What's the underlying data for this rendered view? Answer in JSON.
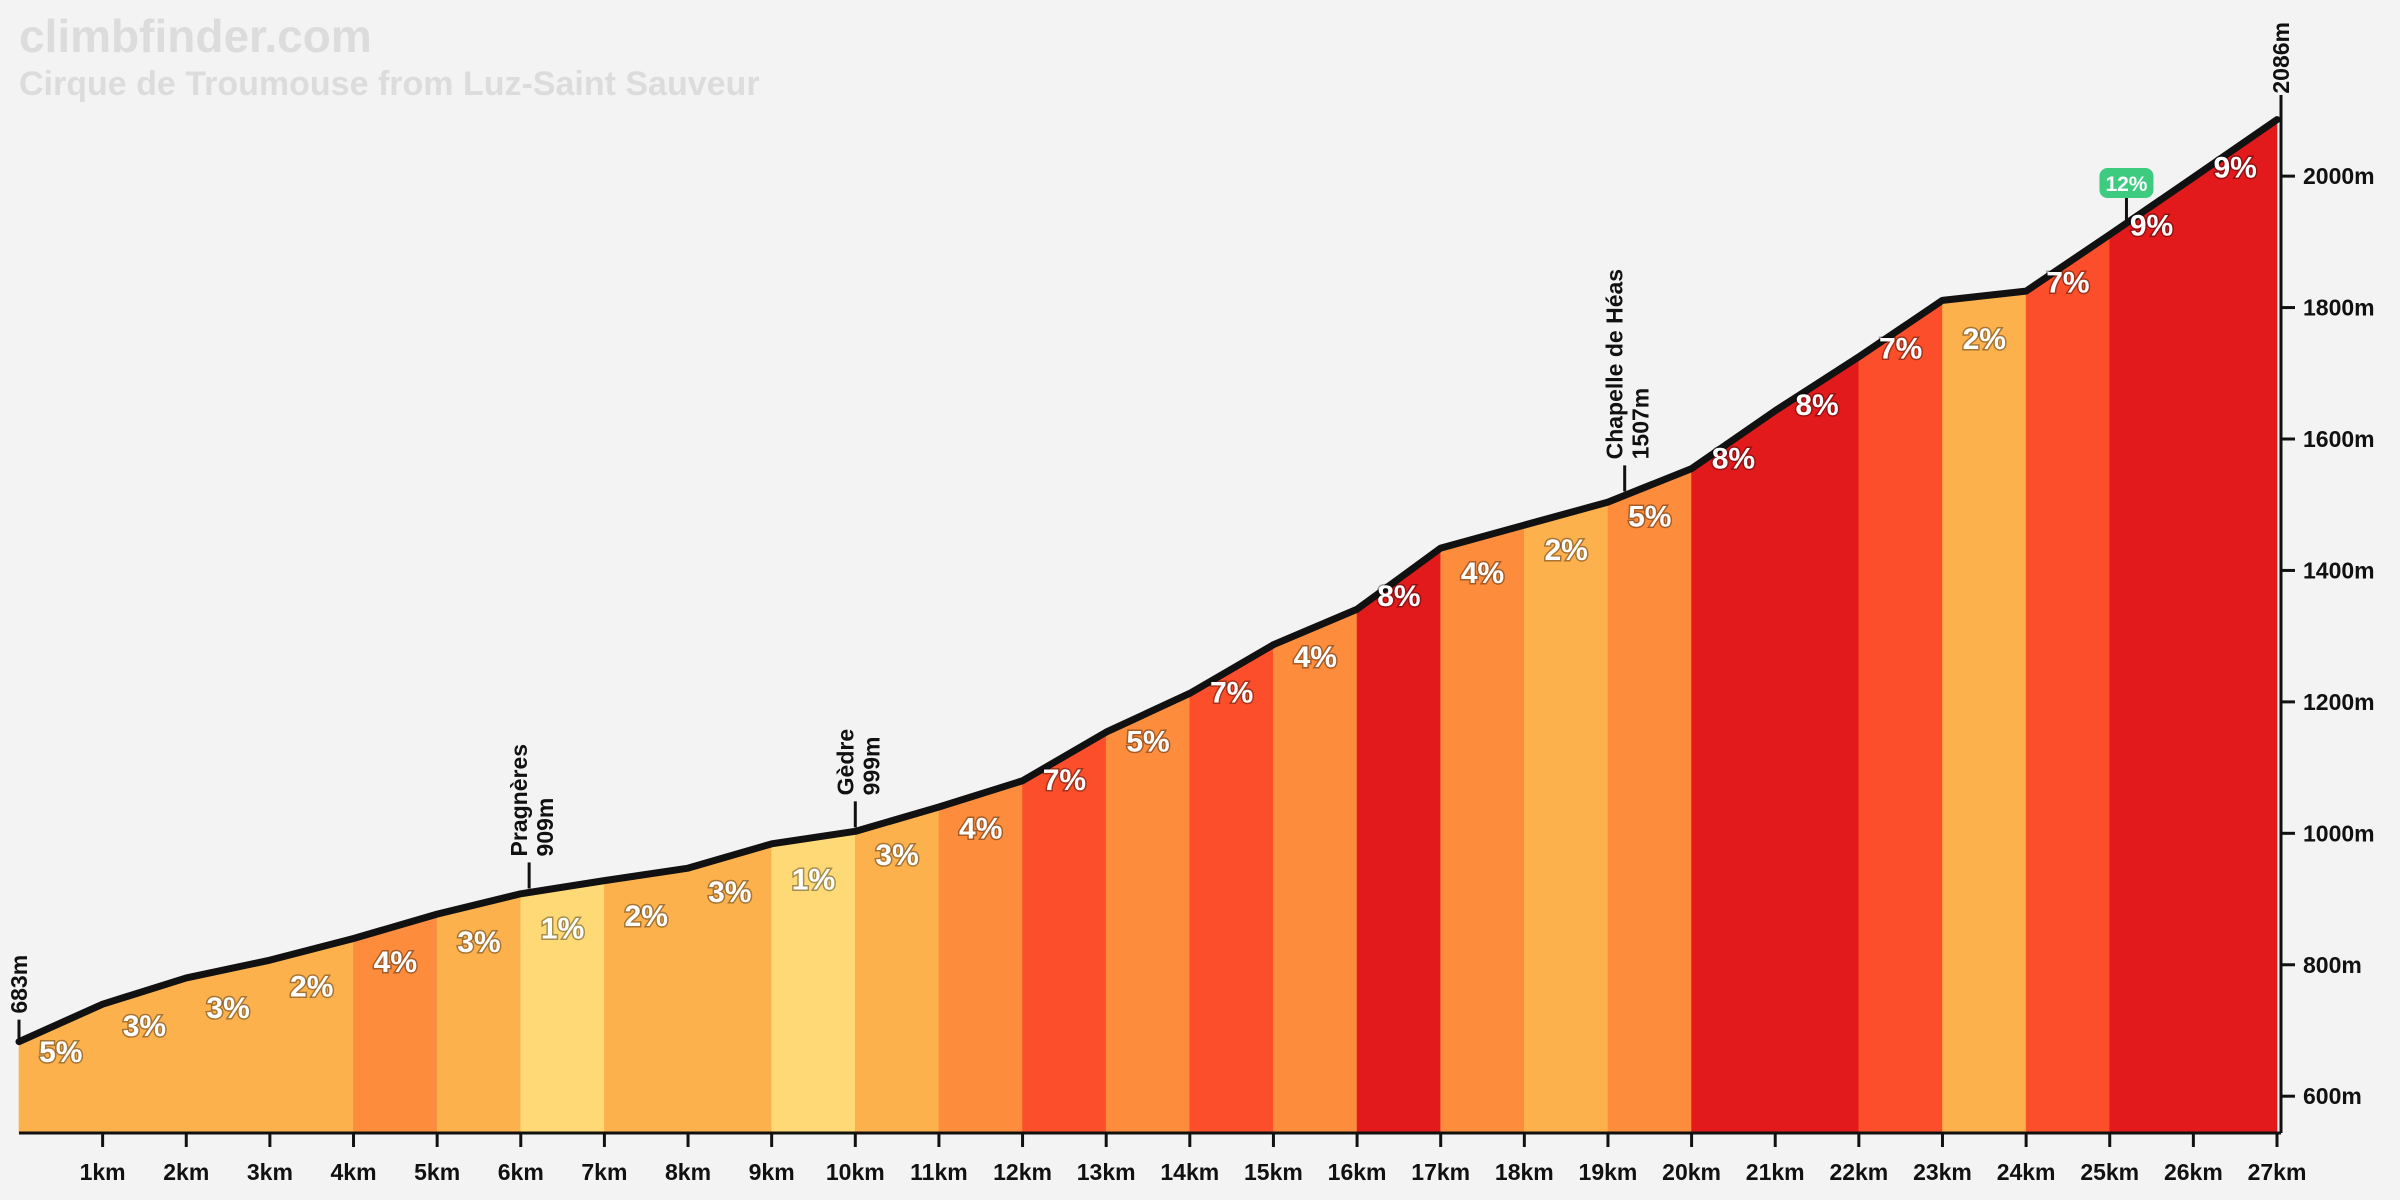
{
  "chart_data": {
    "type": "profile",
    "title": "climbfinder.com",
    "subtitle": "Cirque de Troumouse from Luz-Saint Sauveur",
    "x": [
      0,
      1,
      2,
      3,
      4,
      5,
      6,
      7,
      8,
      9,
      10,
      11,
      12,
      13,
      14,
      15,
      16,
      17,
      18,
      19,
      20,
      21,
      22,
      23,
      24,
      25,
      26,
      27
    ],
    "values": [
      683,
      740,
      780,
      807,
      840,
      877,
      908,
      928,
      947,
      984,
      1003,
      1040,
      1080,
      1154,
      1213,
      1287,
      1341,
      1434,
      1469,
      1504,
      1555,
      1643,
      1725,
      1811,
      1825,
      1911,
      1998,
      2086
    ],
    "gradients": [
      5,
      3,
      3,
      2,
      4,
      3,
      1,
      2,
      3,
      1,
      3,
      4,
      7,
      5,
      7,
      4,
      8,
      4,
      2,
      5,
      8,
      8,
      7,
      2,
      7,
      9,
      9
    ],
    "gradient_labels": [
      "5%",
      "3%",
      "3%",
      "2%",
      "4%",
      "3%",
      "1%",
      "2%",
      "3%",
      "1%",
      "3%",
      "4%",
      "7%",
      "5%",
      "7%",
      "4%",
      "8%",
      "4%",
      "2%",
      "5%",
      "8%",
      "8%",
      "7%",
      "2%",
      "7%",
      "9%",
      "9%"
    ],
    "segment_colors": [
      "#fdb14d",
      "#fdb14d",
      "#fdb14d",
      "#fdb14d",
      "#fd8d3c",
      "#fdb14d",
      "#fed976",
      "#fdb14d",
      "#fdb14d",
      "#fed976",
      "#fdb14d",
      "#fd8d3c",
      "#fc4e2a",
      "#fd8d3c",
      "#fc4e2a",
      "#fd8d3c",
      "#e31a1c",
      "#fd8d3c",
      "#fdb14d",
      "#fd8d3c",
      "#e31a1c",
      "#e31a1c",
      "#fc4e2a",
      "#fdb14d",
      "#fc4e2a",
      "#e31a1c",
      "#e31a1c"
    ],
    "line_color": "#111111",
    "start_label": "683m",
    "end_label": "2086m",
    "waypoints": [
      {
        "x": 6.1,
        "name": "Pragnères",
        "elevation": 909,
        "label": "909m"
      },
      {
        "x": 10,
        "name": "Gèdre",
        "elevation": 999,
        "label": "999m"
      },
      {
        "x": 19.2,
        "name": "Chapelle de Héas",
        "elevation": 1507,
        "label": "1507m"
      }
    ],
    "max_gradient": {
      "x": 25.2,
      "value": 12,
      "label": "12%",
      "color": "#3ccb7f"
    },
    "xlim": [
      0,
      27
    ],
    "ylim": [
      544,
      2268
    ],
    "xticks": [
      {
        "value": 1,
        "label": "1km"
      },
      {
        "value": 2,
        "label": "2km"
      },
      {
        "value": 3,
        "label": "3km"
      },
      {
        "value": 4,
        "label": "4km"
      },
      {
        "value": 5,
        "label": "5km"
      },
      {
        "value": 6,
        "label": "6km"
      },
      {
        "value": 7,
        "label": "7km"
      },
      {
        "value": 8,
        "label": "8km"
      },
      {
        "value": 9,
        "label": "9km"
      },
      {
        "value": 10,
        "label": "10km"
      },
      {
        "value": 11,
        "label": "11km"
      },
      {
        "value": 12,
        "label": "12km"
      },
      {
        "value": 13,
        "label": "13km"
      },
      {
        "value": 14,
        "label": "14km"
      },
      {
        "value": 15,
        "label": "15km"
      },
      {
        "value": 16,
        "label": "16km"
      },
      {
        "value": 17,
        "label": "17km"
      },
      {
        "value": 18,
        "label": "18km"
      },
      {
        "value": 19,
        "label": "19km"
      },
      {
        "value": 20,
        "label": "20km"
      },
      {
        "value": 21,
        "label": "21km"
      },
      {
        "value": 22,
        "label": "22km"
      },
      {
        "value": 23,
        "label": "23km"
      },
      {
        "value": 24,
        "label": "24km"
      },
      {
        "value": 25,
        "label": "25km"
      },
      {
        "value": 26,
        "label": "26km"
      },
      {
        "value": 27,
        "label": "27km"
      }
    ],
    "yticks": [
      {
        "value": 600,
        "label": "600m"
      },
      {
        "value": 800,
        "label": "800m"
      },
      {
        "value": 1000,
        "label": "1000m"
      },
      {
        "value": 1200,
        "label": "1200m"
      },
      {
        "value": 1400,
        "label": "1400m"
      },
      {
        "value": 1600,
        "label": "1600m"
      },
      {
        "value": 1800,
        "label": "1800m"
      },
      {
        "value": 2000,
        "label": "2000m"
      }
    ]
  }
}
